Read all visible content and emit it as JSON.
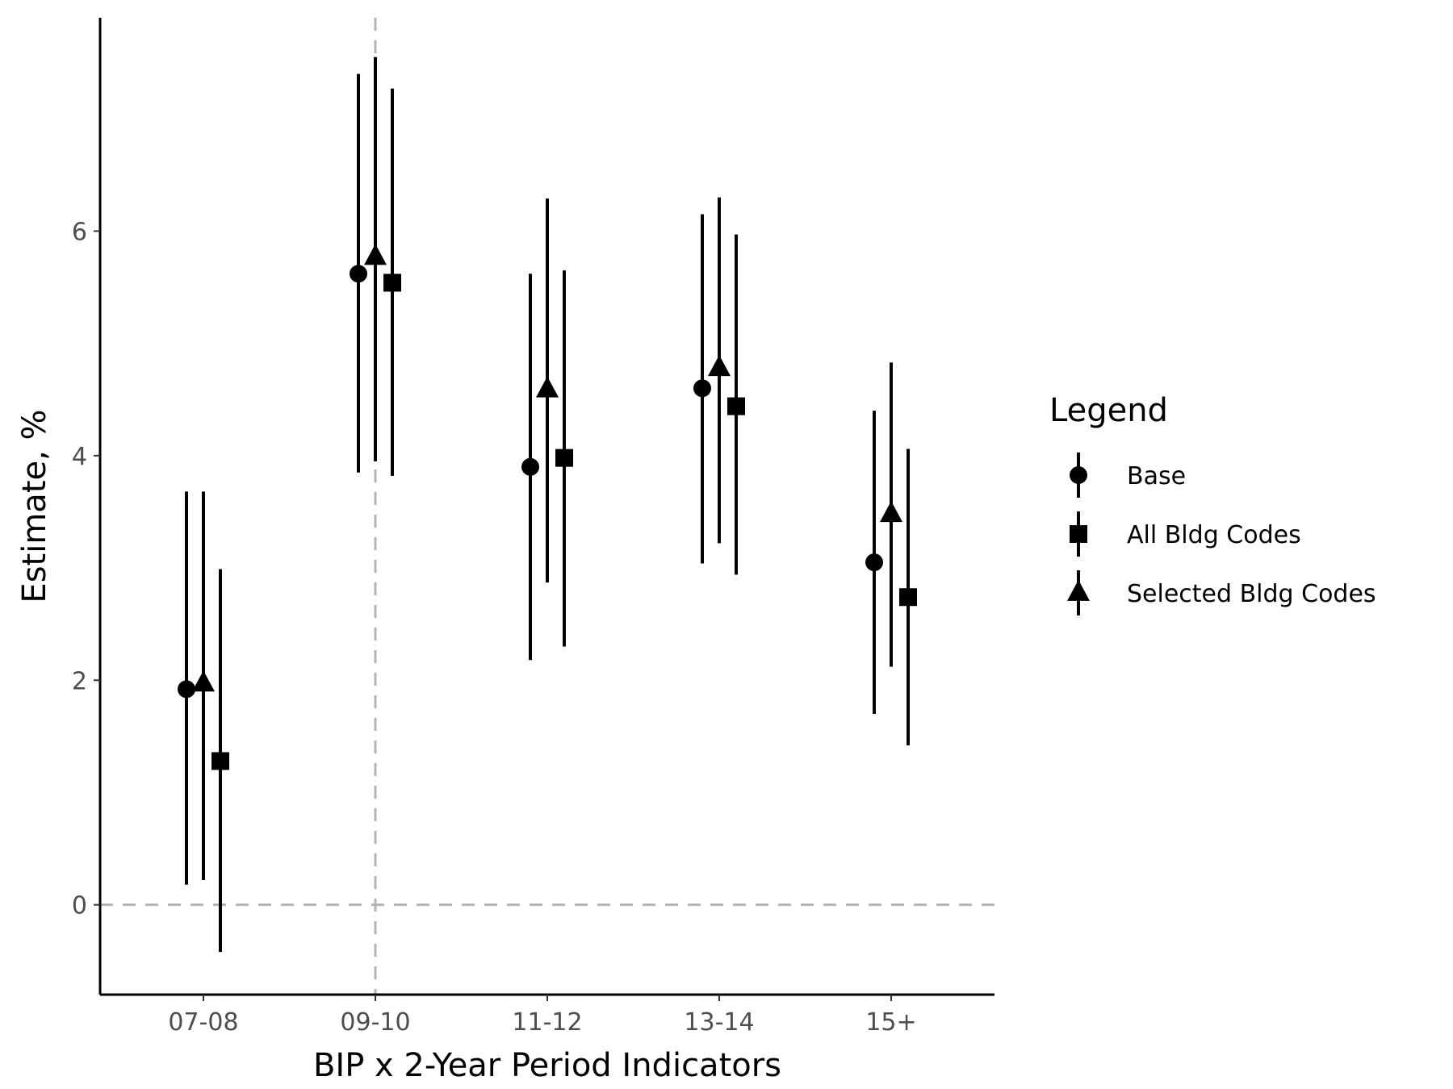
{
  "chart_data": {
    "type": "scatter",
    "subtype": "point-range (estimate with confidence interval)",
    "title": "",
    "xlabel": "BIP x 2-Year Period Indicators",
    "ylabel": "Estimate, %",
    "categories": [
      "07-08",
      "09-10",
      "11-12",
      "13-14",
      "15+"
    ],
    "yticks": [
      0,
      2,
      4,
      6
    ],
    "ylim": [
      -0.8,
      7.9
    ],
    "grid": false,
    "reference_lines": [
      {
        "axis": "y",
        "value": 0,
        "style": "dashed",
        "color": "#b3b3b3"
      },
      {
        "axis": "x",
        "category": "09-10",
        "style": "dashed",
        "color": "#b3b3b3"
      }
    ],
    "legend": {
      "title": "Legend",
      "position": "right",
      "entries": [
        "Base",
        "All Bldg Codes",
        "Selected Bldg Codes"
      ]
    },
    "series": [
      {
        "name": "Base",
        "shape": "circle",
        "color": "#000000",
        "estimates": [
          1.92,
          5.62,
          3.9,
          4.6,
          3.05
        ],
        "lower": [
          0.18,
          3.85,
          2.18,
          3.04,
          1.7
        ],
        "upper": [
          3.68,
          7.4,
          5.62,
          6.15,
          4.4
        ]
      },
      {
        "name": "All Bldg Codes",
        "shape": "square",
        "color": "#000000",
        "estimates": [
          1.28,
          5.54,
          3.98,
          4.44,
          2.74
        ],
        "lower": [
          -0.42,
          3.82,
          2.3,
          2.94,
          1.42
        ],
        "upper": [
          2.99,
          7.27,
          5.65,
          5.97,
          4.06
        ]
      },
      {
        "name": "Selected Bldg Codes",
        "shape": "triangle",
        "color": "#000000",
        "estimates": [
          1.97,
          5.77,
          4.59,
          4.78,
          3.48
        ],
        "lower": [
          0.22,
          3.95,
          2.87,
          3.22,
          2.12
        ],
        "upper": [
          3.68,
          7.55,
          6.29,
          6.3,
          4.83
        ]
      }
    ]
  }
}
